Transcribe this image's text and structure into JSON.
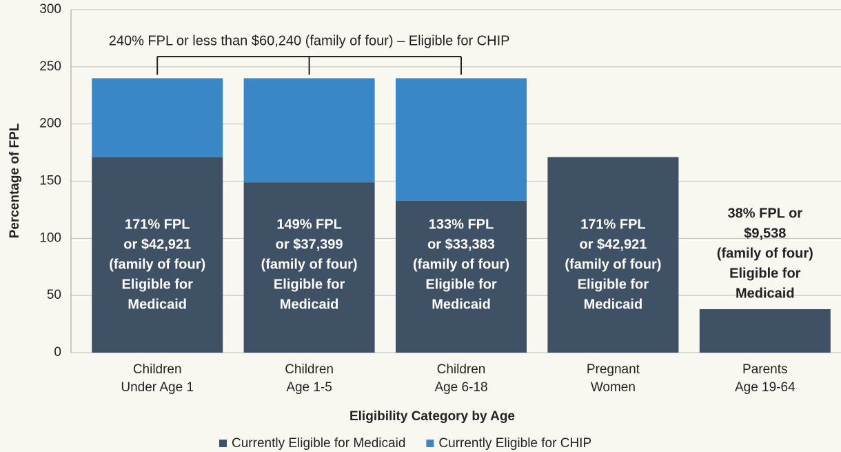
{
  "chart_data": {
    "type": "stacked_bar",
    "x_label": "Eligibility Category by Age",
    "y_label": "Percentage of FPL",
    "categories": [
      [
        "Children",
        "Under Age 1"
      ],
      [
        "Children",
        "Age 1-5"
      ],
      [
        "Children",
        "Age 6-18"
      ],
      [
        "Pregnant",
        "Women"
      ],
      [
        "Parents",
        "Age 19-64"
      ]
    ],
    "series": [
      {
        "name": "Currently Eligible for Medicaid",
        "color": "#3e5165",
        "values": [
          171,
          149,
          133,
          171,
          38
        ],
        "value_labels": [
          [
            "171% FPL",
            "or $42,921",
            "(family of four)",
            "Eligible for",
            "Medicaid"
          ],
          [
            "149% FPL",
            "or $37,399",
            "(family of four)",
            "Eligible for",
            "Medicaid"
          ],
          [
            "133% FPL",
            "or $33,383",
            "(family of four)",
            "Eligible for",
            "Medicaid"
          ],
          [
            "171% FPL",
            "or $42,921",
            "(family of four)",
            "Eligible for",
            "Medicaid"
          ],
          [
            "38% FPL or",
            "$9,538",
            "(family of four)",
            "Eligible for",
            "Medicaid"
          ]
        ]
      },
      {
        "name": "Currently Eligible for CHIP",
        "color": "#3a87c8",
        "values": [
          69,
          91,
          107,
          null,
          null
        ]
      }
    ],
    "annotation": "240% FPL or less than $60,240 (family of four) – Eligible for CHIP",
    "ylim": [
      0,
      300
    ],
    "yticks": [
      0,
      50,
      100,
      150,
      200,
      250,
      300
    ],
    "grid": true
  }
}
